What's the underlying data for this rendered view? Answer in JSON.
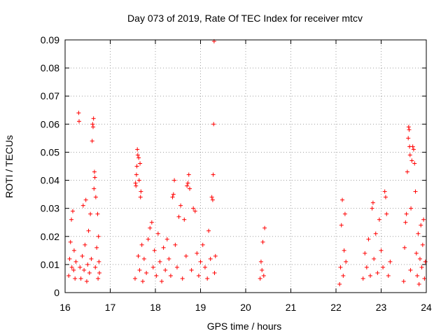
{
  "chart_data": {
    "type": "scatter",
    "title": "Day 073 of 2019, Rate Of TEC Index for receiver mtcv",
    "xlabel": "GPS time / hours",
    "ylabel": "ROTI / TECUs",
    "xlim": [
      16,
      24
    ],
    "ylim": [
      0,
      0.09
    ],
    "xticks": [
      "16",
      "17",
      "18",
      "19",
      "20",
      "21",
      "22",
      "23",
      "24"
    ],
    "yticks": [
      "0",
      "0.01",
      "0.02",
      "0.03",
      "0.04",
      "0.05",
      "0.06",
      "0.07",
      "0.08",
      "0.09"
    ],
    "grid": true,
    "marker": "+",
    "color": "#ff0000",
    "series": [
      {
        "name": "ROTI",
        "values": [
          [
            16.08,
            0.006
          ],
          [
            16.1,
            0.012
          ],
          [
            16.12,
            0.018
          ],
          [
            16.14,
            0.026
          ],
          [
            16.15,
            0.009
          ],
          [
            16.17,
            0.029
          ],
          [
            16.19,
            0.008
          ],
          [
            16.2,
            0.015
          ],
          [
            16.22,
            0.005
          ],
          [
            16.24,
            0.011
          ],
          [
            16.3,
            0.064
          ],
          [
            16.31,
            0.061
          ],
          [
            16.33,
            0.009
          ],
          [
            16.35,
            0.005
          ],
          [
            16.38,
            0.013
          ],
          [
            16.4,
            0.031
          ],
          [
            16.42,
            0.008
          ],
          [
            16.44,
            0.017
          ],
          [
            16.46,
            0.033
          ],
          [
            16.48,
            0.004
          ],
          [
            16.5,
            0.01
          ],
          [
            16.52,
            0.022
          ],
          [
            16.54,
            0.007
          ],
          [
            16.56,
            0.028
          ],
          [
            16.58,
            0.012
          ],
          [
            16.6,
            0.054
          ],
          [
            16.61,
            0.06
          ],
          [
            16.62,
            0.059
          ],
          [
            16.63,
            0.062
          ],
          [
            16.64,
            0.037
          ],
          [
            16.65,
            0.043
          ],
          [
            16.66,
            0.041
          ],
          [
            16.67,
            0.009
          ],
          [
            16.68,
            0.034
          ],
          [
            16.7,
            0.016
          ],
          [
            16.72,
            0.028
          ],
          [
            16.73,
            0.005
          ],
          [
            16.74,
            0.02
          ],
          [
            16.75,
            0.011
          ],
          [
            16.76,
            0.007
          ],
          [
            17.55,
            0.005
          ],
          [
            17.56,
            0.039
          ],
          [
            17.57,
            0.038
          ],
          [
            17.58,
            0.042
          ],
          [
            17.59,
            0.045
          ],
          [
            17.6,
            0.051
          ],
          [
            17.61,
            0.049
          ],
          [
            17.62,
            0.013
          ],
          [
            17.63,
            0.048
          ],
          [
            17.64,
            0.04
          ],
          [
            17.65,
            0.008
          ],
          [
            17.66,
            0.046
          ],
          [
            17.67,
            0.034
          ],
          [
            17.68,
            0.036
          ],
          [
            17.7,
            0.017
          ],
          [
            17.72,
            0.004
          ],
          [
            17.75,
            0.012
          ],
          [
            17.8,
            0.007
          ],
          [
            17.84,
            0.019
          ],
          [
            17.88,
            0.023
          ],
          [
            17.92,
            0.025
          ],
          [
            17.95,
            0.009
          ],
          [
            17.98,
            0.015
          ],
          [
            18.02,
            0.006
          ],
          [
            18.06,
            0.021
          ],
          [
            18.1,
            0.011
          ],
          [
            18.14,
            0.004
          ],
          [
            18.18,
            0.016
          ],
          [
            18.22,
            0.008
          ],
          [
            18.26,
            0.019
          ],
          [
            18.3,
            0.012
          ],
          [
            18.34,
            0.006
          ],
          [
            18.38,
            0.034
          ],
          [
            18.4,
            0.035
          ],
          [
            18.42,
            0.04
          ],
          [
            18.44,
            0.017
          ],
          [
            18.48,
            0.009
          ],
          [
            18.52,
            0.027
          ],
          [
            18.56,
            0.031
          ],
          [
            18.6,
            0.005
          ],
          [
            18.64,
            0.026
          ],
          [
            18.68,
            0.013
          ],
          [
            18.7,
            0.038
          ],
          [
            18.72,
            0.039
          ],
          [
            18.74,
            0.042
          ],
          [
            18.76,
            0.037
          ],
          [
            18.8,
            0.008
          ],
          [
            18.84,
            0.03
          ],
          [
            18.88,
            0.029
          ],
          [
            18.92,
            0.014
          ],
          [
            18.96,
            0.006
          ],
          [
            19.0,
            0.011
          ],
          [
            19.05,
            0.017
          ],
          [
            19.1,
            0.009
          ],
          [
            19.15,
            0.005
          ],
          [
            19.18,
            0.022
          ],
          [
            19.22,
            0.012
          ],
          [
            19.25,
            0.034
          ],
          [
            19.27,
            0.033
          ],
          [
            19.28,
            0.042
          ],
          [
            19.29,
            0.06
          ],
          [
            19.3,
            0.0895
          ],
          [
            19.31,
            0.007
          ],
          [
            19.33,
            0.013
          ],
          [
            20.32,
            0.005
          ],
          [
            20.34,
            0.011
          ],
          [
            20.36,
            0.008
          ],
          [
            20.38,
            0.018
          ],
          [
            20.4,
            0.006
          ],
          [
            20.42,
            0.023
          ],
          [
            22.08,
            0.003
          ],
          [
            22.1,
            0.009
          ],
          [
            22.12,
            0.024
          ],
          [
            22.14,
            0.033
          ],
          [
            22.16,
            0.006
          ],
          [
            22.18,
            0.015
          ],
          [
            22.2,
            0.028
          ],
          [
            22.22,
            0.011
          ],
          [
            22.6,
            0.005
          ],
          [
            22.64,
            0.014
          ],
          [
            22.68,
            0.009
          ],
          [
            22.72,
            0.019
          ],
          [
            22.76,
            0.006
          ],
          [
            22.8,
            0.03
          ],
          [
            22.82,
            0.032
          ],
          [
            22.84,
            0.012
          ],
          [
            22.88,
            0.021
          ],
          [
            22.92,
            0.007
          ],
          [
            22.96,
            0.026
          ],
          [
            23.0,
            0.015
          ],
          [
            23.04,
            0.009
          ],
          [
            23.08,
            0.036
          ],
          [
            23.1,
            0.034
          ],
          [
            23.12,
            0.028
          ],
          [
            23.16,
            0.006
          ],
          [
            23.2,
            0.011
          ],
          [
            23.5,
            0.004
          ],
          [
            23.52,
            0.016
          ],
          [
            23.54,
            0.025
          ],
          [
            23.56,
            0.028
          ],
          [
            23.58,
            0.043
          ],
          [
            23.6,
            0.055
          ],
          [
            23.61,
            0.059
          ],
          [
            23.62,
            0.058
          ],
          [
            23.63,
            0.052
          ],
          [
            23.64,
            0.049
          ],
          [
            23.65,
            0.008
          ],
          [
            23.66,
            0.03
          ],
          [
            23.68,
            0.047
          ],
          [
            23.7,
            0.052
          ],
          [
            23.72,
            0.051
          ],
          [
            23.74,
            0.046
          ],
          [
            23.76,
            0.036
          ],
          [
            23.78,
            0.014
          ],
          [
            23.8,
            0.006
          ],
          [
            23.82,
            0.021
          ],
          [
            23.84,
            0.003
          ],
          [
            23.86,
            0.012
          ],
          [
            23.88,
            0.024
          ],
          [
            23.9,
            0.009
          ],
          [
            23.92,
            0.017
          ],
          [
            23.94,
            0.026
          ],
          [
            23.96,
            0.005
          ],
          [
            23.98,
            0.011
          ]
        ]
      }
    ]
  }
}
